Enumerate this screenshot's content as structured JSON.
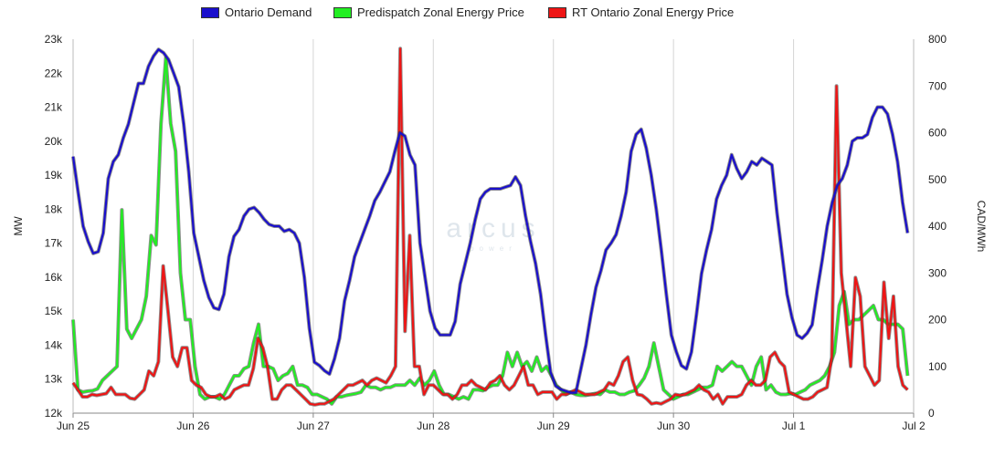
{
  "legend": [
    {
      "label": "Ontario Demand",
      "color": "#1a0fcc"
    },
    {
      "label": "Predispatch Zonal Energy Price",
      "color": "#22ee22"
    },
    {
      "label": "RT Ontario Zonal Energy Price",
      "color": "#ee1515"
    }
  ],
  "watermark": {
    "word": "arcus",
    "sub": "power"
  },
  "chart_data": {
    "type": "line",
    "title": "",
    "xlabel": "",
    "ylabel": "MW",
    "y2label": "CAD/MWh",
    "x_ticks": [
      "Jun 25",
      "Jun 26",
      "Jun 27",
      "Jun 28",
      "Jun 29",
      "Jun 30",
      "Jul 1",
      "Jul 2"
    ],
    "xlim": [
      0,
      7
    ],
    "ylim": [
      12000,
      23000
    ],
    "y_ticks": [
      "12k",
      "13k",
      "14k",
      "15k",
      "16k",
      "17k",
      "18k",
      "19k",
      "20k",
      "21k",
      "22k",
      "23k"
    ],
    "y2lim": [
      0,
      800
    ],
    "y2_ticks": [
      "0",
      "100",
      "200",
      "300",
      "400",
      "500",
      "600",
      "700",
      "800"
    ],
    "grid": "vertical",
    "legend_position": "top",
    "series": [
      {
        "name": "Ontario Demand",
        "axis": "left",
        "color": "#1a0fcc",
        "values": [
          19550,
          18500,
          17500,
          17050,
          16700,
          16750,
          17300,
          18900,
          19400,
          19600,
          20100,
          20500,
          21100,
          21700,
          21700,
          22200,
          22500,
          22700,
          22600,
          22400,
          22000,
          21600,
          20500,
          19100,
          17300,
          16600,
          15900,
          15400,
          15100,
          15050,
          15500,
          16600,
          17200,
          17400,
          17800,
          18000,
          18050,
          17900,
          17700,
          17550,
          17500,
          17500,
          17350,
          17400,
          17300,
          17000,
          16000,
          14500,
          13500,
          13400,
          13250,
          13150,
          13600,
          14200,
          15300,
          15900,
          16600,
          17000,
          17400,
          17800,
          18250,
          18500,
          18800,
          19100,
          19700,
          20250,
          20150,
          19600,
          19300,
          17000,
          16000,
          15000,
          14500,
          14300,
          14300,
          14300,
          14700,
          15800,
          16400,
          17000,
          17700,
          18300,
          18500,
          18600,
          18600,
          18600,
          18650,
          18700,
          18950,
          18700,
          17800,
          17050,
          16400,
          15500,
          14300,
          13200,
          12800,
          12700,
          12650,
          12600,
          12600,
          13300,
          14000,
          14900,
          15700,
          16200,
          16800,
          17000,
          17250,
          17800,
          18500,
          19700,
          20200,
          20350,
          19800,
          19000,
          18000,
          16800,
          15500,
          14300,
          13800,
          13400,
          13300,
          13800,
          14900,
          16100,
          16800,
          17400,
          18300,
          18700,
          19000,
          19600,
          19200,
          18900,
          19100,
          19400,
          19300,
          19500,
          19400,
          19300,
          17900,
          16700,
          15500,
          14800,
          14300,
          14200,
          14350,
          14600,
          15600,
          16500,
          17500,
          18200,
          18700,
          18900,
          19300,
          20000,
          20100,
          20100,
          20200,
          20700,
          21000,
          21000,
          20800,
          20200,
          19400,
          18200,
          17300
        ]
      },
      {
        "name": "Predispatch Zonal Energy Price",
        "axis": "right",
        "color": "#22ee22",
        "values": [
          200,
          50,
          45,
          47,
          48,
          52,
          70,
          80,
          90,
          100,
          435,
          180,
          160,
          180,
          200,
          250,
          380,
          360,
          620,
          760,
          620,
          560,
          300,
          200,
          200,
          100,
          40,
          30,
          35,
          35,
          30,
          40,
          60,
          80,
          80,
          95,
          100,
          150,
          190,
          100,
          100,
          95,
          70,
          80,
          85,
          100,
          60,
          60,
          55,
          40,
          40,
          35,
          30,
          20,
          35,
          35,
          38,
          40,
          42,
          45,
          60,
          55,
          55,
          50,
          55,
          55,
          60,
          60,
          60,
          70,
          60,
          75,
          60,
          70,
          90,
          60,
          40,
          40,
          35,
          30,
          35,
          30,
          50,
          50,
          48,
          55,
          60,
          60,
          80,
          130,
          100,
          130,
          100,
          110,
          90,
          120,
          90,
          100,
          80,
          60,
          50,
          40,
          45,
          40,
          38,
          38,
          40,
          42,
          40,
          50,
          45,
          45,
          40,
          40,
          45,
          48,
          60,
          75,
          100,
          150,
          100,
          50,
          40,
          30,
          35,
          40,
          40,
          45,
          50,
          55,
          55,
          60,
          100,
          90,
          100,
          110,
          100,
          100,
          80,
          60,
          100,
          120,
          50,
          60,
          45,
          40,
          40,
          42,
          40,
          45,
          50,
          60,
          65,
          70,
          80,
          100,
          130,
          230,
          260,
          190,
          200,
          200,
          210,
          220,
          230,
          200,
          200,
          190,
          190,
          190,
          180,
          80
        ]
      },
      {
        "name": "RT Ontario Zonal Energy Price",
        "axis": "right",
        "color": "#ee1515",
        "values": [
          65,
          50,
          35,
          35,
          40,
          38,
          40,
          42,
          55,
          40,
          40,
          40,
          32,
          30,
          40,
          50,
          90,
          80,
          110,
          315,
          220,
          120,
          100,
          140,
          140,
          70,
          60,
          55,
          40,
          35,
          35,
          40,
          30,
          35,
          50,
          55,
          60,
          60,
          95,
          160,
          140,
          100,
          30,
          30,
          50,
          60,
          60,
          50,
          40,
          30,
          20,
          18,
          20,
          20,
          25,
          30,
          40,
          50,
          60,
          60,
          65,
          70,
          60,
          70,
          75,
          70,
          65,
          80,
          100,
          780,
          175,
          380,
          100,
          100,
          40,
          60,
          60,
          50,
          40,
          40,
          30,
          40,
          60,
          60,
          70,
          60,
          55,
          50,
          65,
          70,
          80,
          60,
          50,
          60,
          80,
          100,
          60,
          60,
          40,
          45,
          45,
          45,
          30,
          40,
          40,
          45,
          50,
          45,
          40,
          40,
          40,
          45,
          50,
          65,
          60,
          80,
          110,
          120,
          70,
          40,
          38,
          30,
          20,
          22,
          20,
          25,
          30,
          40,
          38,
          40,
          45,
          50,
          60,
          50,
          45,
          30,
          40,
          20,
          35,
          35,
          35,
          40,
          60,
          70,
          60,
          60,
          70,
          120,
          130,
          110,
          100,
          45,
          40,
          35,
          30,
          30,
          35,
          45,
          50,
          55,
          120,
          700,
          300,
          200,
          100,
          290,
          250,
          100,
          80,
          60,
          70,
          280,
          160,
          250,
          100,
          60,
          50
        ]
      }
    ]
  }
}
